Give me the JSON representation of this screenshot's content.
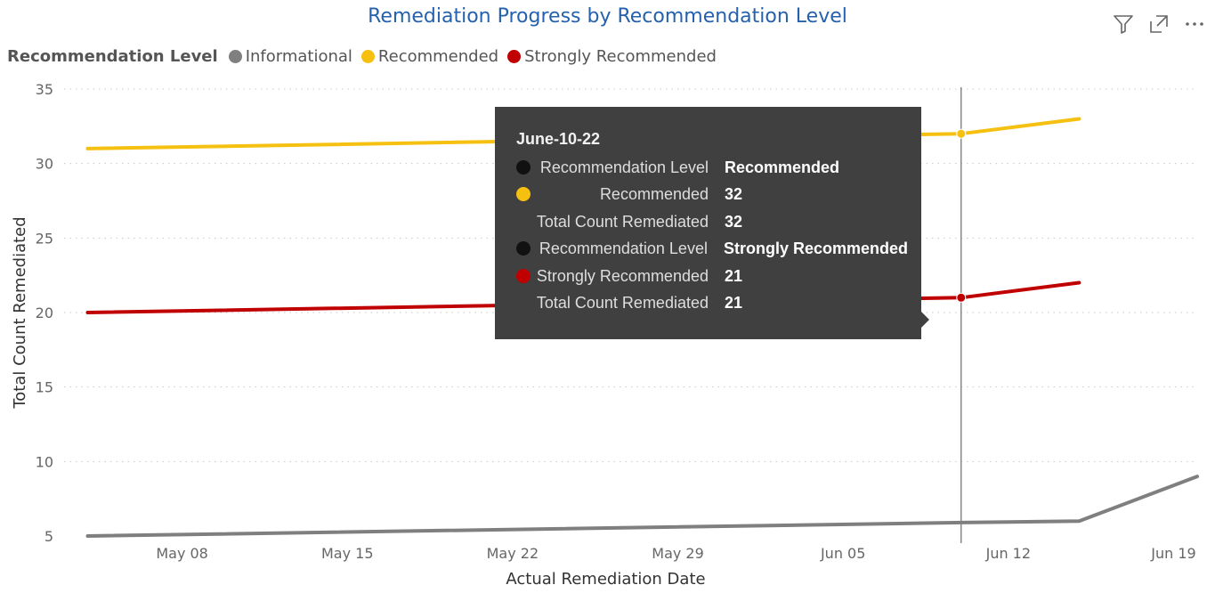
{
  "header": {
    "title": "Remediation Progress by Recommendation Level",
    "icons": [
      "filter-icon",
      "focus-mode-icon",
      "more-options-icon"
    ]
  },
  "legend": {
    "title": "Recommendation Level",
    "items": [
      {
        "label": "Informational",
        "color": "#7f7f7f"
      },
      {
        "label": "Recommended",
        "color": "#f5c010"
      },
      {
        "label": "Strongly Recommended",
        "color": "#c00000"
      }
    ]
  },
  "chart_data": {
    "type": "line",
    "title": "Remediation Progress by Recommendation Level",
    "xlabel": "Actual Remediation Date",
    "ylabel": "Total Count Remediated",
    "ylim": [
      5,
      35
    ],
    "yticks": [
      5,
      10,
      15,
      20,
      25,
      30,
      35
    ],
    "xlim": [
      "2022-05-03",
      "2022-06-20"
    ],
    "xticks": [
      {
        "date": "2022-05-08",
        "label": "May 08"
      },
      {
        "date": "2022-05-15",
        "label": "May 15"
      },
      {
        "date": "2022-05-22",
        "label": "May 22"
      },
      {
        "date": "2022-05-29",
        "label": "May 29"
      },
      {
        "date": "2022-06-05",
        "label": "Jun 05"
      },
      {
        "date": "2022-06-12",
        "label": "Jun 12"
      },
      {
        "date": "2022-06-19",
        "label": "Jun 19"
      }
    ],
    "grid": true,
    "legend_position": "top-left",
    "series": [
      {
        "name": "Informational",
        "color": "#7f7f7f",
        "points": [
          [
            "2022-05-04",
            5
          ],
          [
            "2022-06-10",
            5.9
          ],
          [
            "2022-06-15",
            6
          ],
          [
            "2022-06-20",
            9
          ]
        ]
      },
      {
        "name": "Recommended",
        "color": "#f5c010",
        "points": [
          [
            "2022-05-04",
            31
          ],
          [
            "2022-06-10",
            32
          ],
          [
            "2022-06-15",
            33
          ]
        ]
      },
      {
        "name": "Strongly Recommended",
        "color": "#c00000",
        "points": [
          [
            "2022-05-04",
            20
          ],
          [
            "2022-06-10",
            21
          ],
          [
            "2022-06-15",
            22
          ]
        ]
      }
    ],
    "hover": {
      "date": "2022-06-10",
      "markers": [
        {
          "series": "Recommended",
          "value": 32
        },
        {
          "series": "Strongly Recommended",
          "value": 21
        }
      ]
    }
  },
  "tooltip": {
    "date": "June-10-22",
    "rows": [
      {
        "swatch": "#111111",
        "label": "Recommendation Level",
        "value": "Recommended"
      },
      {
        "swatch": "#f5c010",
        "label": "Recommended",
        "value": "32"
      },
      {
        "swatch": "",
        "label": "Total Count Remediated",
        "value": "32"
      },
      {
        "swatch": "#111111",
        "label": "Recommendation Level",
        "value": "Strongly Recommended"
      },
      {
        "swatch": "#c00000",
        "label": "Strongly Recommended",
        "value": "21"
      },
      {
        "swatch": "",
        "label": "Total Count Remediated",
        "value": "21"
      }
    ]
  }
}
